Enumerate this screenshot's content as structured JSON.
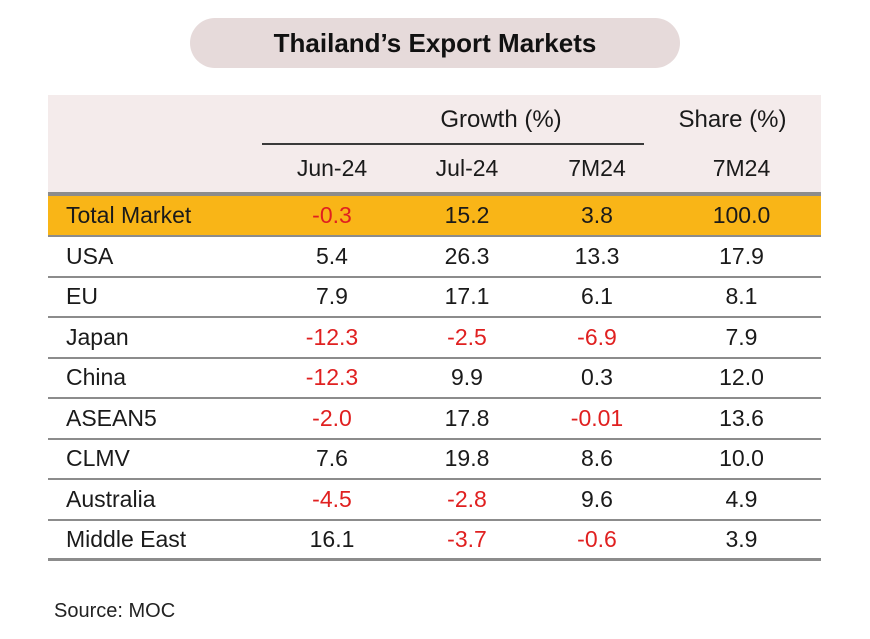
{
  "title": "Thailand’s Export Markets",
  "header": {
    "growth_label": "Growth (%)",
    "share_label": "Share (%)",
    "columns": [
      "Jun-24",
      "Jul-24",
      "7M24",
      "7M24"
    ]
  },
  "rows": [
    {
      "market": "Total Market",
      "jun": "-0.3",
      "jul": "15.2",
      "ytd": "3.8",
      "share": "100.0"
    },
    {
      "market": "USA",
      "jun": "5.4",
      "jul": "26.3",
      "ytd": "13.3",
      "share": "17.9"
    },
    {
      "market": "EU",
      "jun": "7.9",
      "jul": "17.1",
      "ytd": "6.1",
      "share": "8.1"
    },
    {
      "market": "Japan",
      "jun": "-12.3",
      "jul": "-2.5",
      "ytd": "-6.9",
      "share": "7.9"
    },
    {
      "market": "China",
      "jun": "-12.3",
      "jul": "9.9",
      "ytd": "0.3",
      "share": "12.0"
    },
    {
      "market": "ASEAN5",
      "jun": "-2.0",
      "jul": "17.8",
      "ytd": "-0.01",
      "share": "13.6"
    },
    {
      "market": "CLMV",
      "jun": "7.6",
      "jul": "19.8",
      "ytd": "8.6",
      "share": "10.0"
    },
    {
      "market": "Australia",
      "jun": "-4.5",
      "jul": "-2.8",
      "ytd": "9.6",
      "share": "4.9"
    },
    {
      "market": "Middle East",
      "jun": "16.1",
      "jul": "-3.7",
      "ytd": "-0.6",
      "share": "3.9"
    }
  ],
  "source": "Source: MOC",
  "colors": {
    "highlight": "#f9b517",
    "negative": "#e02020",
    "header_bg": "#f4ebeb",
    "title_bg": "#e6dada"
  }
}
